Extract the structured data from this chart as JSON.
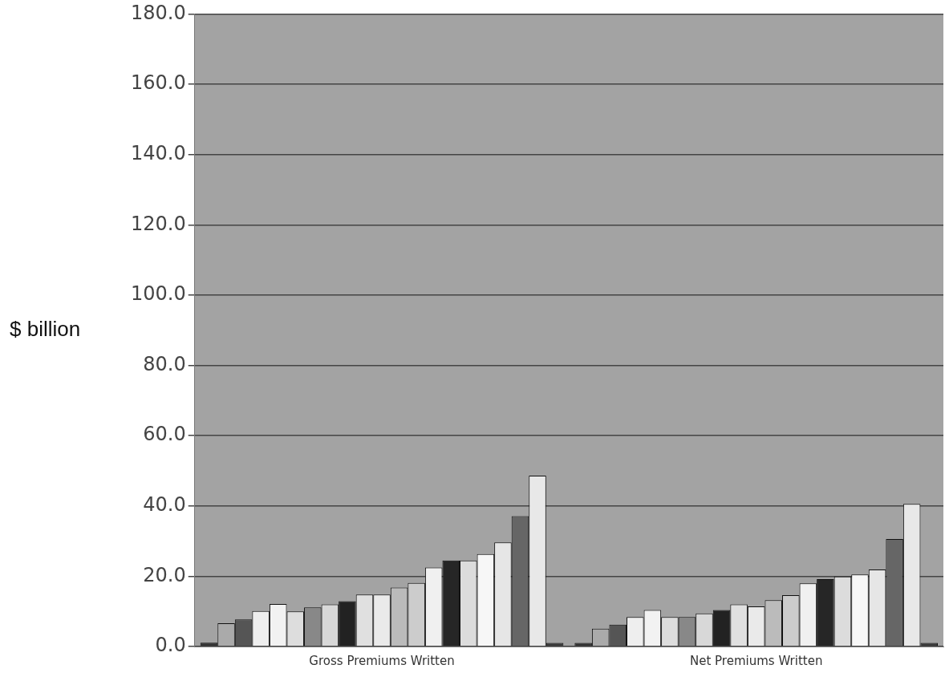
{
  "chart_data": {
    "type": "bar",
    "ylabel": "$ billion",
    "categories": [
      "Gross Premiums Written",
      "Net Premiums Written"
    ],
    "series": [
      {
        "color": "#333333",
        "values": [
          1.1,
          1.0
        ]
      },
      {
        "color": "#aaaaaa",
        "values": [
          6.6,
          5.1
        ]
      },
      {
        "color": "#555555",
        "values": [
          7.7,
          6.2
        ]
      },
      {
        "color": "#eeeeee",
        "values": [
          10.1,
          8.4
        ]
      },
      {
        "color": "#f2f2f2",
        "values": [
          12.1,
          10.4
        ]
      },
      {
        "color": "#dddddd",
        "values": [
          10.0,
          8.4
        ]
      },
      {
        "color": "#888888",
        "values": [
          11.1,
          8.4
        ]
      },
      {
        "color": "#d8d8d8",
        "values": [
          12.0,
          9.4
        ]
      },
      {
        "color": "#222222",
        "values": [
          12.9,
          10.4
        ]
      },
      {
        "color": "#e0e0e0",
        "values": [
          14.8,
          12.0
        ]
      },
      {
        "color": "#eaeaea",
        "values": [
          14.8,
          11.4
        ]
      },
      {
        "color": "#bbbbbb",
        "values": [
          16.8,
          13.2
        ]
      },
      {
        "color": "#cccccc",
        "values": [
          18.1,
          14.6
        ]
      },
      {
        "color": "#f0f0f0",
        "values": [
          22.5,
          18.0
        ]
      },
      {
        "color": "#262626",
        "values": [
          24.5,
          19.2
        ]
      },
      {
        "color": "#dcdcdc",
        "values": [
          24.5,
          19.9
        ]
      },
      {
        "color": "#f7f7f7",
        "values": [
          26.3,
          20.5
        ]
      },
      {
        "color": "#e6e6e6",
        "values": [
          29.6,
          21.9
        ]
      },
      {
        "color": "#666666",
        "values": [
          37.1,
          30.6
        ]
      },
      {
        "color": "#e8e8e8",
        "values": [
          48.6,
          40.6
        ]
      },
      {
        "color": "#3a3a3a",
        "values": [
          1.0,
          1.0
        ]
      }
    ],
    "ylim": [
      0,
      180
    ],
    "yticks": [
      {
        "value": 0,
        "label": "0.0"
      },
      {
        "value": 20,
        "label": "20.0"
      },
      {
        "value": 40,
        "label": "40.0"
      },
      {
        "value": 60,
        "label": "60.0"
      },
      {
        "value": 80,
        "label": "80.0"
      },
      {
        "value": 100,
        "label": "100.0"
      },
      {
        "value": 120,
        "label": "120.0"
      },
      {
        "value": 140,
        "label": "140.0"
      },
      {
        "value": 160,
        "label": "160.0"
      },
      {
        "value": 180,
        "label": "180.0"
      }
    ],
    "grid": "y",
    "legend": false
  }
}
